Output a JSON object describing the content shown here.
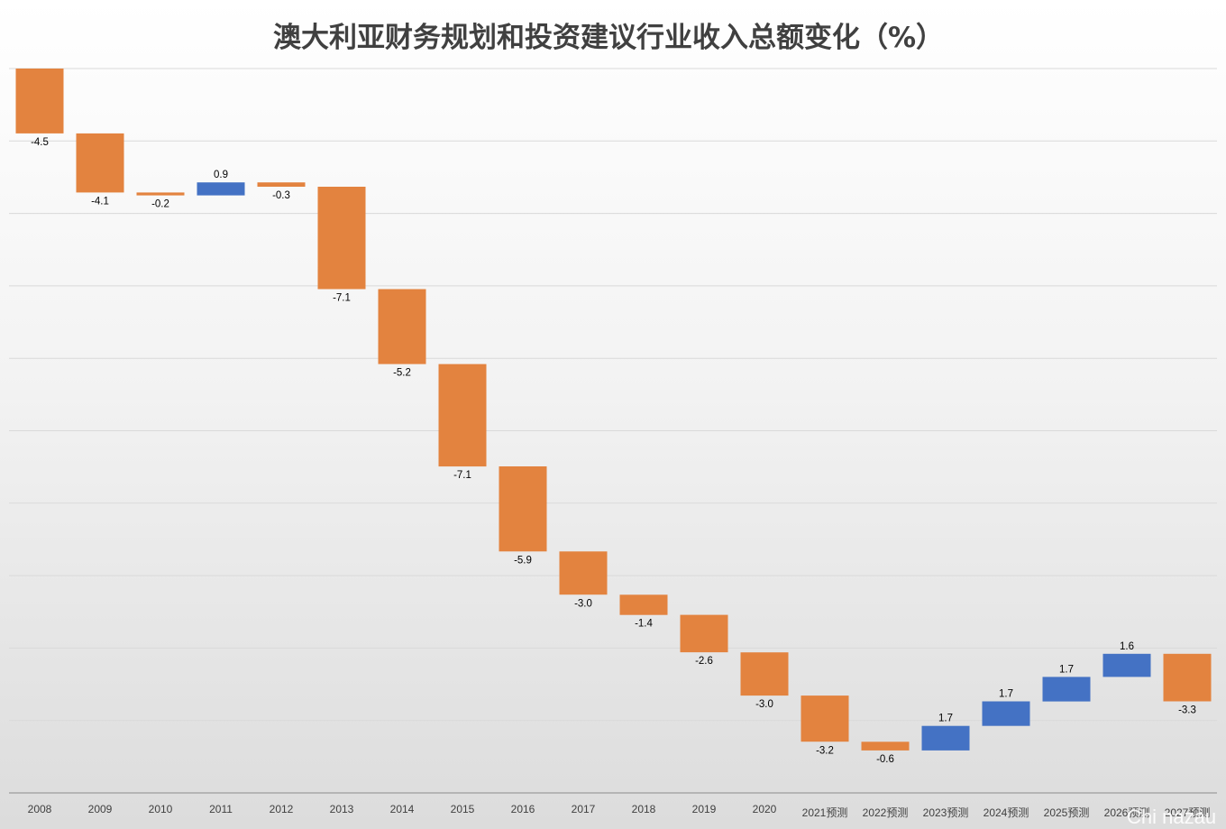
{
  "chart_data": {
    "type": "waterfall",
    "title": "澳大利亚财务规划和投资建议行业收入总额变化（%）",
    "categories": [
      "2008",
      "2009",
      "2010",
      "2011",
      "2012",
      "2013",
      "2014",
      "2015",
      "2016",
      "2017",
      "2018",
      "2019",
      "2020",
      "2021预测",
      "2022预测",
      "2023预测",
      "2024预测",
      "2025预测",
      "2026预测",
      "2027预测"
    ],
    "values": [
      -4.5,
      -4.1,
      -0.2,
      0.9,
      -0.3,
      -7.1,
      -5.2,
      -7.1,
      -5.9,
      -3.0,
      -1.4,
      -2.6,
      -3.0,
      -3.2,
      -0.6,
      1.7,
      1.7,
      1.7,
      1.6,
      -3.3
    ],
    "data_labels": [
      "-4.5",
      "-4.1",
      "-0.2",
      "0.9",
      "-0.3",
      "-7.1",
      "-5.2",
      "-7.1",
      "-5.9",
      "-3.0",
      "-1.4",
      "-2.6",
      "-3.0",
      "-3.2",
      "-0.6",
      "1.7",
      "1.7",
      "1.7",
      "1.6",
      "-3.3"
    ],
    "colors": {
      "increase": "#4472c4",
      "decrease": "#e3833f"
    },
    "grid": true,
    "legend": "none"
  },
  "watermark": "Chi  nazau"
}
